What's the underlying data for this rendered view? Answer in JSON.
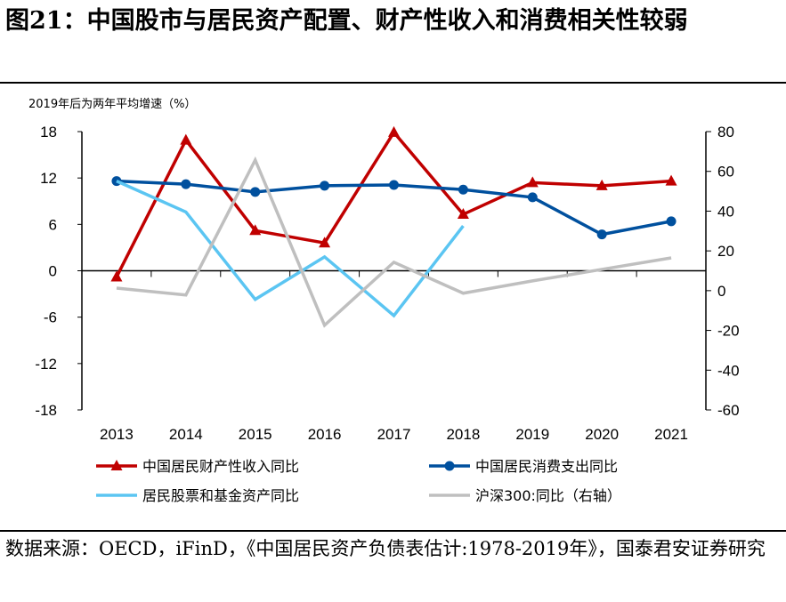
{
  "title": "图21：中国股市与居民资产配置、财产性收入和消费相关性较弱",
  "unit_label": "2019年后为两年平均增速（%）",
  "source": "数据来源：OECD，iFinD，《中国居民资产负债表估计:1978-2019年》，国泰君安证券研究",
  "chart_data": {
    "type": "line",
    "categories": [
      "2013",
      "2014",
      "2015",
      "2016",
      "2017",
      "2018",
      "2019",
      "2020",
      "2021"
    ],
    "left_axis": {
      "ylim": [
        -18,
        18
      ],
      "ticks": [
        "18",
        "12",
        "6",
        "0",
        "-6",
        "-12",
        "-18"
      ]
    },
    "right_axis": {
      "ylim": [
        -60,
        80
      ],
      "ticks": [
        "80",
        "60",
        "40",
        "20",
        "0",
        "-20",
        "-40",
        "-60"
      ]
    },
    "legend_position": "bottom",
    "series": [
      {
        "name": "中国居民财产性收入同比",
        "axis": "left",
        "color": "#C00000",
        "marker": "triangle",
        "values": [
          -0.8,
          16.9,
          5.2,
          3.6,
          17.9,
          7.3,
          11.4,
          11.0,
          11.6
        ]
      },
      {
        "name": "中国居民消费支出同比",
        "axis": "left",
        "color": "#00509E",
        "marker": "circle",
        "values": [
          11.6,
          11.2,
          10.2,
          11.0,
          11.1,
          10.5,
          9.5,
          4.7,
          6.4
        ]
      },
      {
        "name": "居民股票和基金资产同比",
        "axis": "left",
        "color": "#5BC5F2",
        "marker": "none",
        "values": [
          11.6,
          7.6,
          -3.7,
          1.8,
          -5.8,
          5.8,
          null,
          null,
          null
        ]
      },
      {
        "name": "沪深300:同比（右轴）",
        "axis": "right",
        "color": "#BFBFBF",
        "marker": "none",
        "values": [
          1.3,
          -2.2,
          65.7,
          -17.4,
          14.3,
          -1.3,
          4.9,
          10.7,
          16.5
        ]
      }
    ]
  }
}
